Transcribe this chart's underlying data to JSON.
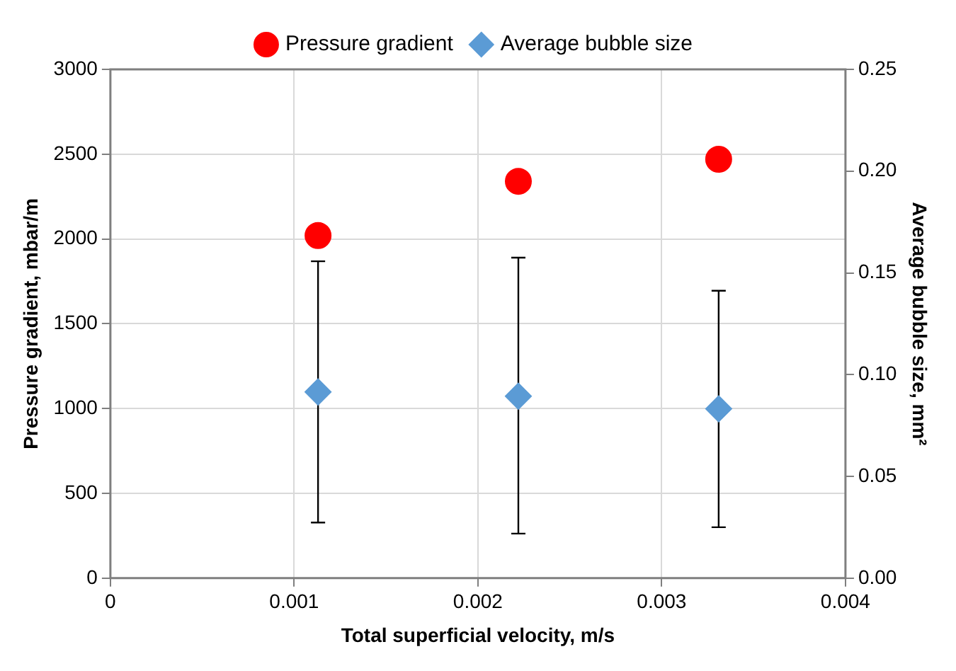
{
  "chart_data": {
    "type": "scatter",
    "xlabel": "Total superficial velocity, m/s",
    "ylabel": "Pressure gradient, mbar/m",
    "y2label": "Average bubble size, mm²",
    "x": [
      0.00113,
      0.00222,
      0.00331
    ],
    "series": [
      {
        "name": "Pressure gradient",
        "color": "#ff0000",
        "marker": "circle",
        "values": [
          2020,
          2340,
          2470
        ]
      },
      {
        "name": "Average bubble size",
        "color": "#5b9bd5",
        "marker": "diamond",
        "axis": "y2",
        "values": [
          0.0915,
          0.0894,
          0.0832
        ],
        "errors": [
          [
            0.0273,
            0.1557
          ],
          [
            0.0219,
            0.1575
          ],
          [
            0.025,
            0.1412
          ]
        ]
      }
    ],
    "xlim": [
      0,
      0.004
    ],
    "xticks": [
      0,
      0.001,
      0.002,
      0.003,
      0.004
    ],
    "ylim": [
      0,
      3000
    ],
    "yticks": [
      0,
      500,
      1000,
      1500,
      2000,
      2500,
      3000
    ],
    "y2lim": [
      0,
      0.25
    ],
    "y2ticks": [
      {
        "value": 0,
        "label": "0.00"
      },
      {
        "value": 0.05,
        "label": "0.05"
      },
      {
        "value": 0.1,
        "label": "0.10"
      },
      {
        "value": 0.15,
        "label": "0.15"
      },
      {
        "value": 0.2,
        "label": "0.20"
      },
      {
        "value": 0.25,
        "label": "0.25"
      }
    ],
    "grid": true,
    "legend": "top"
  }
}
